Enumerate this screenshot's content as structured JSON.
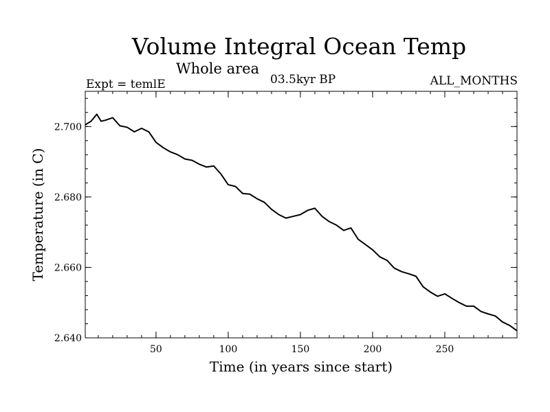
{
  "chart_data": {
    "type": "line",
    "title": "Volume Integral Ocean Temp",
    "subtitle": "Whole area",
    "experiment_label": "Expt = temlE",
    "period_label": "03.5kyr BP",
    "months_label": "ALL_MONTHS",
    "xlabel": "Time (in years since start)",
    "ylabel": "Temperature (in C)",
    "xlim": [
      1,
      300
    ],
    "ylim": [
      2.64,
      2.71
    ],
    "xticks": [
      50,
      100,
      150,
      200,
      250
    ],
    "xtick_labels": [
      "50",
      "100",
      "150",
      "200",
      "250"
    ],
    "yticks": [
      2.64,
      2.66,
      2.68,
      2.7
    ],
    "ytick_labels": [
      "2.640",
      "2.660",
      "2.680",
      "2.700"
    ],
    "series": [
      {
        "name": "Volume integral temperature",
        "x": [
          1,
          5,
          9,
          12,
          15,
          20,
          25,
          30,
          35,
          40,
          45,
          50,
          55,
          60,
          65,
          70,
          75,
          80,
          85,
          90,
          95,
          100,
          105,
          110,
          115,
          120,
          125,
          130,
          135,
          140,
          145,
          150,
          155,
          160,
          165,
          170,
          175,
          180,
          185,
          190,
          195,
          200,
          205,
          210,
          215,
          220,
          225,
          230,
          235,
          240,
          245,
          250,
          255,
          260,
          265,
          270,
          275,
          280,
          285,
          290,
          295,
          300
        ],
        "values": [
          2.7005,
          2.7015,
          2.7035,
          2.7015,
          2.7018,
          2.7025,
          2.7002,
          2.6998,
          2.6985,
          2.6995,
          2.6985,
          2.6955,
          2.694,
          2.6928,
          2.692,
          2.6908,
          2.6904,
          2.6893,
          2.6885,
          2.6888,
          2.6865,
          2.6835,
          2.683,
          2.681,
          2.6808,
          2.6795,
          2.6785,
          2.6765,
          2.675,
          2.674,
          2.6745,
          2.675,
          2.6762,
          2.6768,
          2.6745,
          2.673,
          2.672,
          2.6705,
          2.6712,
          2.668,
          2.6665,
          2.665,
          2.663,
          2.662,
          2.6598,
          2.6588,
          2.6582,
          2.6575,
          2.6545,
          2.653,
          2.6518,
          2.6525,
          2.6512,
          2.65,
          2.649,
          2.649,
          2.6475,
          2.6468,
          2.6462,
          2.6445,
          2.6435,
          2.642
        ]
      }
    ]
  }
}
